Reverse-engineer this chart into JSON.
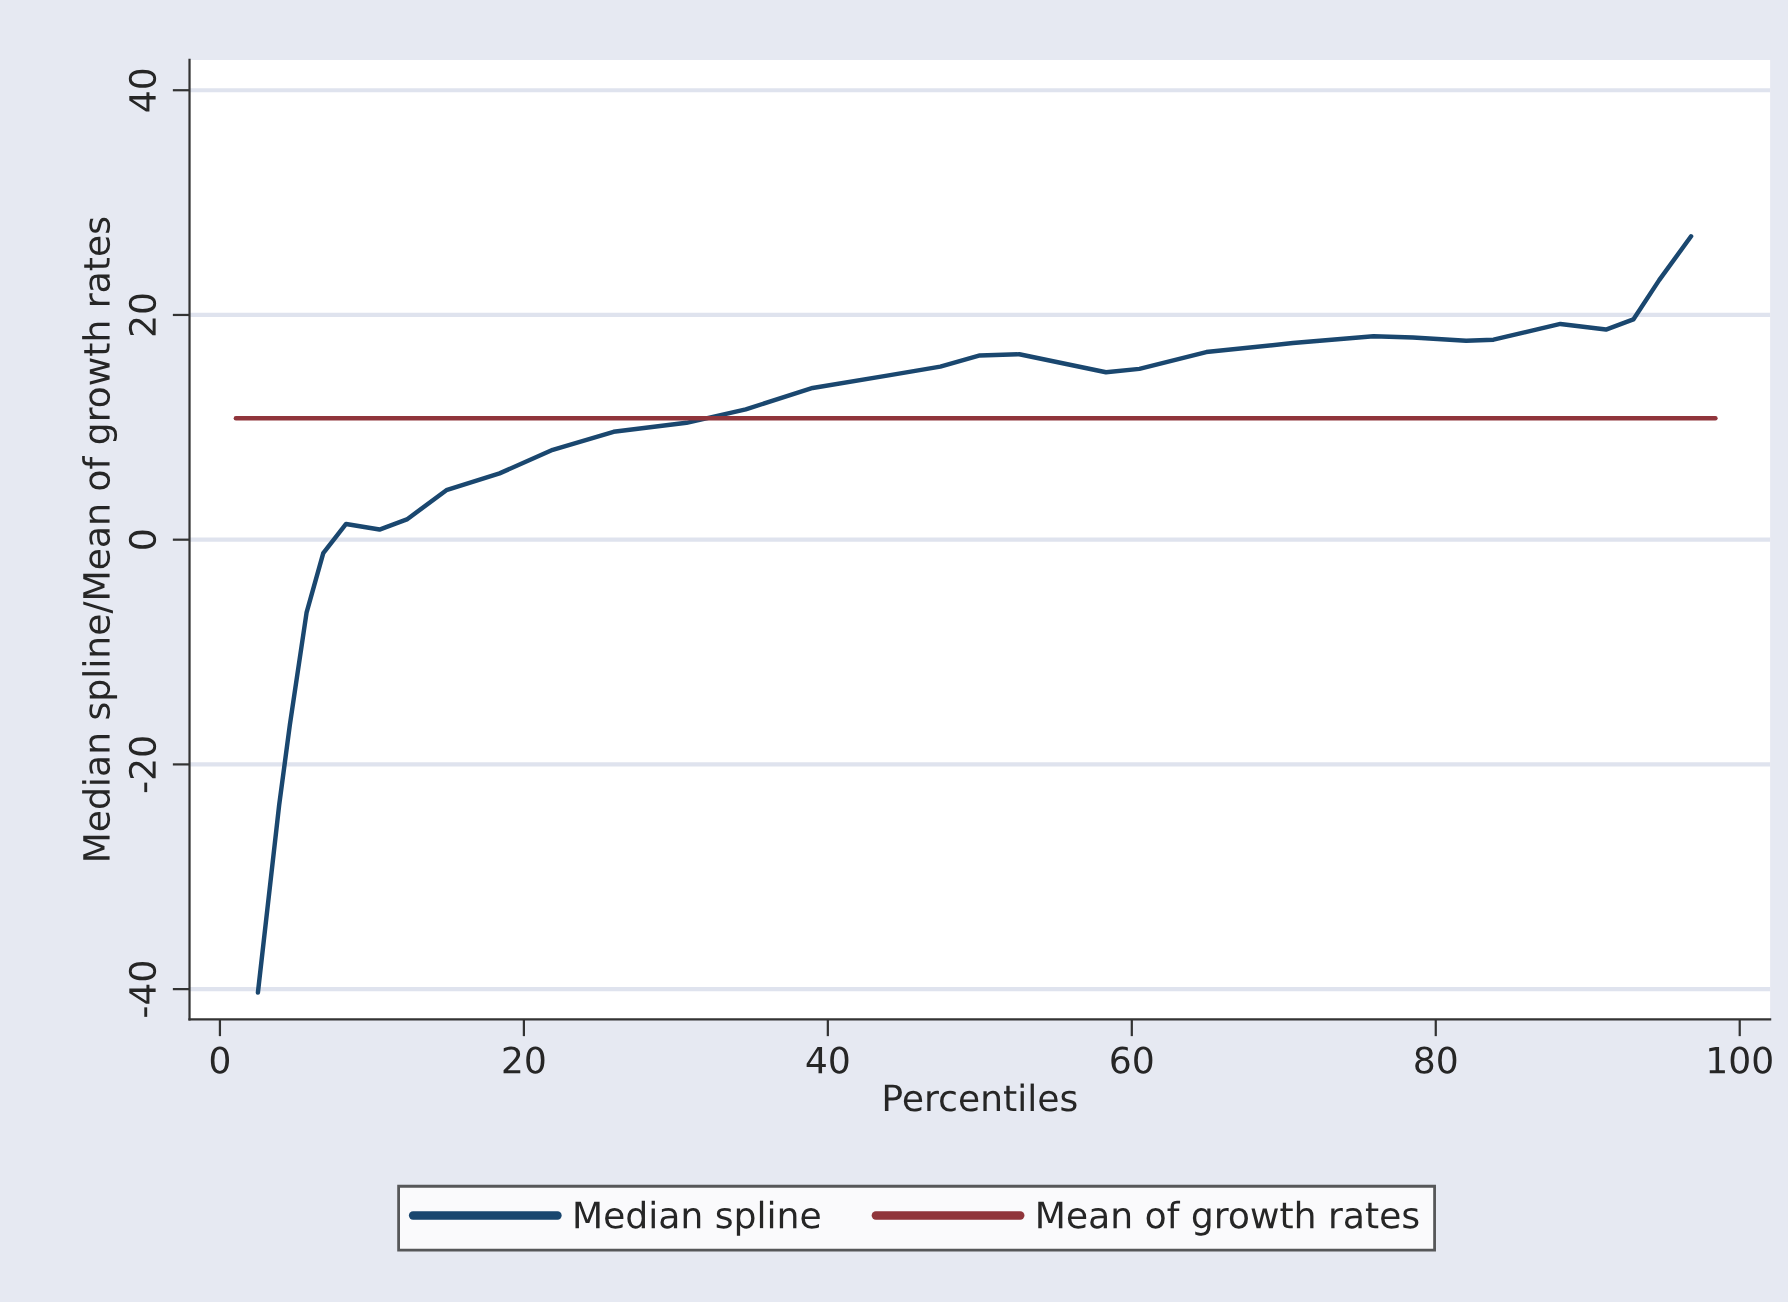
{
  "chart_data": {
    "type": "line",
    "xlabel": "Percentiles",
    "ylabel": "Median spline/Mean of growth rates",
    "series": [
      {
        "name": "Median spline",
        "color": "#1a476f",
        "x": [
          2.5,
          3.9,
          4.6,
          5.7,
          6.8,
          8.3,
          10.5,
          12.3,
          14.9,
          18.4,
          21.9,
          25.9,
          30.7,
          34.6,
          39.0,
          43.9,
          47.4,
          50,
          52.6,
          58.3,
          60.5,
          64.9,
          70.6,
          75.9,
          78.5,
          82.0,
          83.8,
          88.2,
          91.2,
          93.0,
          94.7,
          96.8
        ],
        "values": [
          -40.3,
          -23.6,
          -16.5,
          -6.5,
          -1.2,
          1.4,
          0.9,
          1.8,
          4.4,
          5.9,
          8.0,
          9.6,
          10.4,
          11.6,
          13.5,
          14.6,
          15.4,
          16.4,
          16.5,
          14.9,
          15.2,
          16.7,
          17.5,
          18.1,
          18.0,
          17.7,
          17.8,
          19.2,
          18.7,
          19.6,
          23.1,
          27.0
        ]
      },
      {
        "name": "Mean of growth rates",
        "color": "#90353b",
        "x": [
          1.05,
          98.4
        ],
        "values": [
          10.8,
          10.8
        ]
      }
    ],
    "xlim": [
      -2,
      102
    ],
    "xticks": [
      0,
      20,
      40,
      60,
      80,
      100
    ],
    "ylim": [
      -42.7,
      42.7
    ],
    "yticks": [
      -40,
      -20,
      0,
      20,
      40
    ],
    "grid": "y",
    "legend": "bottom",
    "marker": "none",
    "line_style": "solid"
  }
}
